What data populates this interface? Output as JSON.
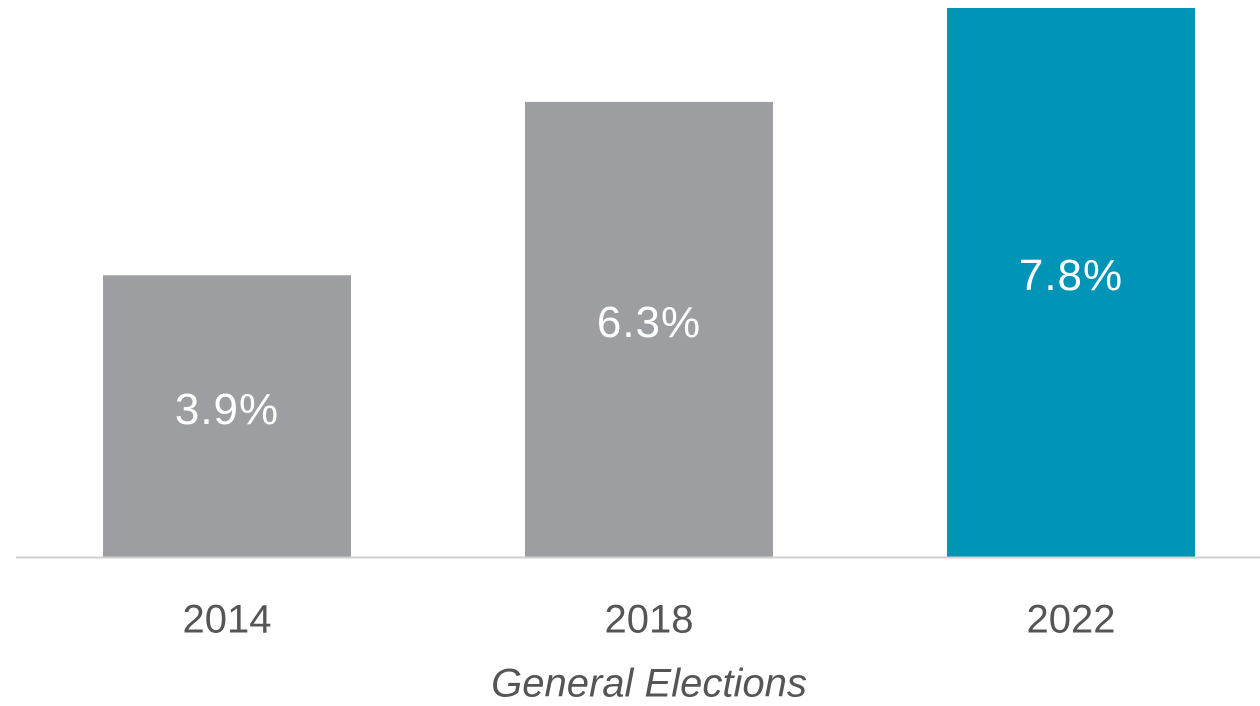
{
  "chart_data": {
    "type": "bar",
    "categories": [
      "2014",
      "2018",
      "2022"
    ],
    "values": [
      3.9,
      6.3,
      7.8
    ],
    "value_labels": [
      "3.9%",
      "6.3%",
      "7.8%"
    ],
    "colors": [
      "#9d9ea2",
      "#9d9ea2",
      "#0094b6"
    ],
    "x_label": "General Elections",
    "ylim": [
      0,
      7.6
    ]
  }
}
